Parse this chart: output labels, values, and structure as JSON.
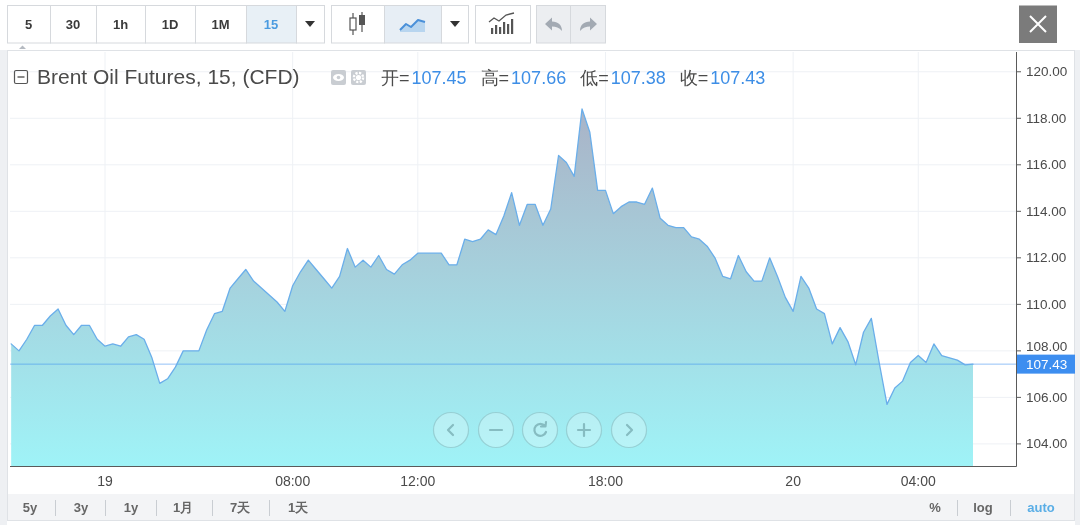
{
  "chart_data": {
    "type": "area",
    "title": "Brent Oil Futures, 15, (CFD)",
    "categories": [
      null,
      null,
      null,
      null,
      null,
      null,
      null,
      null,
      null,
      null,
      null,
      null,
      "19",
      null,
      null,
      null,
      null,
      null,
      null,
      null,
      null,
      null,
      null,
      null,
      null,
      null,
      null,
      null,
      null,
      null,
      null,
      null,
      null,
      null,
      null,
      null,
      "08:00",
      null,
      null,
      null,
      null,
      null,
      null,
      null,
      null,
      null,
      null,
      null,
      null,
      null,
      null,
      null,
      "12:00",
      null,
      null,
      null,
      null,
      null,
      null,
      null,
      null,
      null,
      null,
      null,
      null,
      null,
      null,
      null,
      null,
      null,
      null,
      null,
      null,
      null,
      null,
      null,
      "18:00",
      null,
      null,
      null,
      null,
      null,
      null,
      null,
      null,
      null,
      null,
      null,
      null,
      null,
      null,
      null,
      null,
      null,
      null,
      null,
      null,
      null,
      null,
      null,
      "20",
      null,
      null,
      null,
      null,
      null,
      null,
      null,
      null,
      null,
      null,
      null,
      null,
      null,
      null,
      null,
      "04:00",
      null,
      null,
      null,
      null,
      null,
      null,
      null
    ],
    "values": [
      108.3,
      108.0,
      108.5,
      109.1,
      109.1,
      109.5,
      109.8,
      109.1,
      108.7,
      109.1,
      109.1,
      108.5,
      108.2,
      108.3,
      108.2,
      108.6,
      108.7,
      108.5,
      107.7,
      106.6,
      106.8,
      107.3,
      108.0,
      108.0,
      108.0,
      108.9,
      109.6,
      109.7,
      110.7,
      111.1,
      111.5,
      111.0,
      110.7,
      110.4,
      110.1,
      109.7,
      110.8,
      111.4,
      111.9,
      111.5,
      111.1,
      110.7,
      111.2,
      112.4,
      111.6,
      111.9,
      111.6,
      112.1,
      111.5,
      111.3,
      111.7,
      111.9,
      112.2,
      112.2,
      112.2,
      112.2,
      111.7,
      111.7,
      112.8,
      112.7,
      112.8,
      113.2,
      113.0,
      113.8,
      114.8,
      113.4,
      114.3,
      114.3,
      113.4,
      114.1,
      116.4,
      116.1,
      115.5,
      118.4,
      117.4,
      114.9,
      114.9,
      113.9,
      114.2,
      114.4,
      114.4,
      114.3,
      115.0,
      113.7,
      113.4,
      113.3,
      113.3,
      112.9,
      112.8,
      112.5,
      112.0,
      111.2,
      111.1,
      112.1,
      111.4,
      111.0,
      111.0,
      112.0,
      111.2,
      110.3,
      109.7,
      111.2,
      110.7,
      109.8,
      109.6,
      108.3,
      109.0,
      108.4,
      107.4,
      108.8,
      109.4,
      107.5,
      105.7,
      106.4,
      106.7,
      107.5,
      107.8,
      107.5,
      108.3,
      107.8,
      107.7,
      107.6,
      107.4,
      107.43
    ],
    "color": "#6aaeea",
    "ylim": [
      103.05,
      120.85
    ],
    "yticks": [
      {
        "value": 104,
        "label": "104.00"
      },
      {
        "value": 106,
        "label": "106.00"
      },
      {
        "value": 108,
        "label": "108.00"
      },
      {
        "value": 110,
        "label": "110.00"
      },
      {
        "value": 112,
        "label": "112.00"
      },
      {
        "value": 114,
        "label": "114.00"
      },
      {
        "value": 116,
        "label": "116.00"
      },
      {
        "value": 118,
        "label": "118.00"
      },
      {
        "value": 120,
        "label": "120.00"
      }
    ],
    "grid": true,
    "ref_lines": [
      {
        "axis": "y",
        "value": 107.43,
        "label": "107.43",
        "color": "#3d8ef0"
      }
    ],
    "annotations": [
      "5",
      "30",
      "1h",
      "1D",
      "1M",
      "15",
      "开=",
      "107.45",
      "高=",
      "107.66",
      "低=",
      "107.38",
      "收=",
      "107.43",
      "5y",
      "3y",
      "1y",
      "1月",
      "7天",
      "1天",
      "%",
      "log",
      "auto"
    ]
  }
}
